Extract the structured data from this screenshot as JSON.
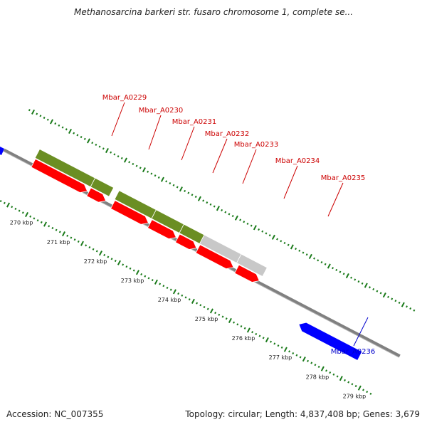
{
  "title": "Methanosarcina barkeri str. fusaro chromosome 1, complete se...",
  "footer": {
    "accession": "Accession: NC_007355",
    "info": "Topology: circular; Length: 4,837,408 bp; Genes: 3,679"
  },
  "colors": {
    "forward_label": "#cc0000",
    "reverse_label": "#0000cc",
    "cds_red": "#ff0000",
    "gene_green": "#6b8e23",
    "gene_gray": "#c8c8c8",
    "reverse_blue": "#0000ff",
    "tick_green": "#1a7a1a",
    "backbone": "#808080"
  },
  "ticks": [
    {
      "label": "270 kbp",
      "kbp": 270
    },
    {
      "label": "271 kbp",
      "kbp": 271
    },
    {
      "label": "272 kbp",
      "kbp": 272
    },
    {
      "label": "273 kbp",
      "kbp": 273
    },
    {
      "label": "274 kbp",
      "kbp": 274
    },
    {
      "label": "275 kbp",
      "kbp": 275
    },
    {
      "label": "276 kbp",
      "kbp": 276
    },
    {
      "label": "277 kbp",
      "kbp": 277
    },
    {
      "label": "278 kbp",
      "kbp": 278
    },
    {
      "label": "279 kbp",
      "kbp": 279
    }
  ],
  "genes": [
    {
      "name": "Mbar_A0229",
      "strand": "forward",
      "start_kbp": 269.55,
      "end_kbp": 271.05
    },
    {
      "name": "Mbar_A0230",
      "strand": "forward",
      "start_kbp": 271.05,
      "end_kbp": 271.55
    },
    {
      "name": "Mbar_A0231",
      "strand": "forward",
      "start_kbp": 271.7,
      "end_kbp": 272.7
    },
    {
      "name": "Mbar_A0232",
      "strand": "forward",
      "start_kbp": 272.7,
      "end_kbp": 273.45
    },
    {
      "name": "Mbar_A0233",
      "strand": "forward",
      "start_kbp": 273.45,
      "end_kbp": 274.0
    },
    {
      "name": "Mbar_A0234",
      "strand": "forward",
      "start_kbp": 274.0,
      "end_kbp": 275.0
    },
    {
      "name": "Mbar_A0235",
      "strand": "forward",
      "start_kbp": 275.0,
      "end_kbp": 275.7
    },
    {
      "name": "Mbar_A0236",
      "strand": "reverse",
      "start_kbp": 277.0,
      "end_kbp": 278.65
    }
  ]
}
